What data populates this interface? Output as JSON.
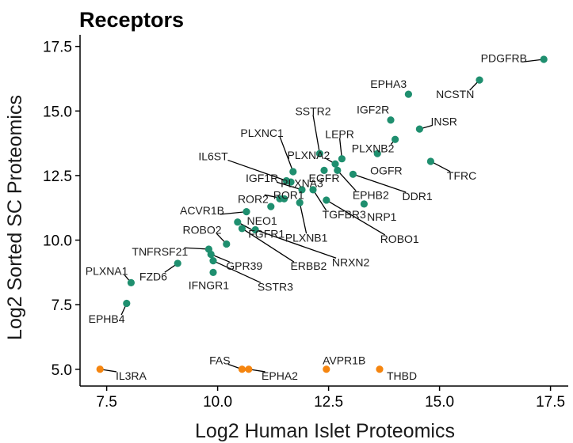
{
  "chart_data": {
    "type": "scatter",
    "title": "Receptors",
    "xlabel": "Log2 Human Islet Proteomics",
    "ylabel": "Log2 Sorted SC Proteomics",
    "xlim": [
      6.9,
      17.9
    ],
    "ylim": [
      4.35,
      17.95
    ],
    "xticks": [
      7.5,
      10.0,
      12.5,
      15.0,
      17.5
    ],
    "yticks": [
      5.0,
      7.5,
      10.0,
      12.5,
      15.0,
      17.5
    ],
    "tick_labels_x": [
      "7.5",
      "10.0",
      "12.5",
      "15.0",
      "17.5"
    ],
    "tick_labels_y": [
      "5.0",
      "7.5",
      "10.0",
      "12.5",
      "15.0",
      "17.5"
    ],
    "grid": false,
    "legend": "none",
    "colors": {
      "detected": "#1f8f6f",
      "imputed": "#f5850f"
    },
    "points": [
      {
        "x": 17.35,
        "y": 17.0,
        "label": "PDGFRB",
        "group": "detected",
        "lx": 16.45,
        "ly": 17.05
      },
      {
        "x": 15.9,
        "y": 16.2,
        "label": "NCSTN",
        "group": "detected",
        "lx": 15.35,
        "ly": 15.65
      },
      {
        "x": 14.3,
        "y": 15.65,
        "label": "EPHA3",
        "group": "detected",
        "lx": 13.85,
        "ly": 16.05
      },
      {
        "x": 13.9,
        "y": 14.65,
        "label": "IGF2R",
        "group": "detected",
        "lx": 13.5,
        "ly": 15.05
      },
      {
        "x": 14.55,
        "y": 14.3,
        "label": "INSR",
        "group": "detected",
        "lx": 15.1,
        "ly": 14.6
      },
      {
        "x": 14.0,
        "y": 13.9,
        "label": "PLXNB2",
        "group": "detected",
        "lx": 13.5,
        "ly": 13.55
      },
      {
        "x": 13.6,
        "y": 13.35,
        "label": "OGFR",
        "group": "detected",
        "lx": 13.8,
        "ly": 12.7
      },
      {
        "x": 14.8,
        "y": 13.05,
        "label": "TFRC",
        "group": "detected",
        "lx": 15.5,
        "ly": 12.5
      },
      {
        "x": 12.8,
        "y": 13.15,
        "label": "LEPR",
        "group": "detected",
        "lx": 12.75,
        "ly": 14.1
      },
      {
        "x": 12.3,
        "y": 13.35,
        "label": "SSTR2",
        "group": "detected",
        "lx": 12.15,
        "ly": 15.0
      },
      {
        "x": 11.7,
        "y": 12.65,
        "label": "PLXNC1",
        "group": "detected",
        "lx": 11.0,
        "ly": 14.15
      },
      {
        "x": 12.65,
        "y": 12.95,
        "label": "PLXNA2",
        "group": "detected",
        "lx": 12.05,
        "ly": 13.3
      },
      {
        "x": 12.4,
        "y": 12.7,
        "label": "EGFR",
        "group": "detected",
        "lx": 12.4,
        "ly": 12.4
      },
      {
        "x": 12.7,
        "y": 12.7,
        "label": "EPHB2",
        "group": "detected",
        "lx": 13.45,
        "ly": 11.75
      },
      {
        "x": 13.05,
        "y": 12.55,
        "label": "DDR1",
        "group": "detected",
        "lx": 14.5,
        "ly": 11.7
      },
      {
        "x": 11.55,
        "y": 12.3,
        "label": "IL6ST",
        "group": "detected",
        "lx": 9.9,
        "ly": 13.25
      },
      {
        "x": 11.65,
        "y": 12.25,
        "label": "PLXNA3",
        "group": "detected",
        "lx": 11.9,
        "ly": 12.2
      },
      {
        "x": 11.9,
        "y": 11.95,
        "label": "IGF1R",
        "group": "detected",
        "lx": 11.0,
        "ly": 12.4
      },
      {
        "x": 11.4,
        "y": 11.6,
        "label": "ROR1",
        "group": "detected",
        "lx": 11.6,
        "ly": 11.75
      },
      {
        "x": 11.5,
        "y": 11.6,
        "label": "ROR2",
        "group": "detected",
        "lx": 10.8,
        "ly": 11.6
      },
      {
        "x": 12.15,
        "y": 11.95,
        "label": "TGFBR3",
        "group": "detected",
        "lx": 12.85,
        "ly": 11.0
      },
      {
        "x": 12.45,
        "y": 11.55,
        "label": "ROBO1",
        "group": "detected",
        "lx": 14.1,
        "ly": 10.05
      },
      {
        "x": 13.3,
        "y": 11.4,
        "label": "NRP1",
        "group": "detected",
        "lx": 13.7,
        "ly": 10.9
      },
      {
        "x": 11.2,
        "y": 11.3,
        "label": "NEO1",
        "group": "detected",
        "lx": 11.0,
        "ly": 10.75
      },
      {
        "x": 11.85,
        "y": 11.45,
        "label": "PLXNB1",
        "group": "detected",
        "lx": 12.0,
        "ly": 10.1
      },
      {
        "x": 10.65,
        "y": 11.1,
        "label": "ACVR1B",
        "group": "detected",
        "lx": 9.65,
        "ly": 11.15
      },
      {
        "x": 10.45,
        "y": 10.7,
        "label": "FGFR1",
        "group": "detected",
        "lx": 11.1,
        "ly": 10.25
      },
      {
        "x": 10.55,
        "y": 10.45,
        "label": "ERBB2",
        "group": "detected",
        "lx": 12.05,
        "ly": 9.0
      },
      {
        "x": 10.85,
        "y": 10.4,
        "label": "NRXN2",
        "group": "detected",
        "lx": 13.0,
        "ly": 9.15
      },
      {
        "x": 10.2,
        "y": 9.85,
        "label": "ROBO2",
        "group": "detected",
        "lx": 9.65,
        "ly": 10.4
      },
      {
        "x": 9.8,
        "y": 9.65,
        "label": "TNFRSF21",
        "group": "detected",
        "lx": 8.7,
        "ly": 9.55
      },
      {
        "x": 9.85,
        "y": 9.45,
        "label": "GPR39",
        "group": "detected",
        "lx": 10.6,
        "ly": 9.0
      },
      {
        "x": 9.9,
        "y": 9.2,
        "label": "SSTR3",
        "group": "detected",
        "lx": 11.3,
        "ly": 8.2
      },
      {
        "x": 9.1,
        "y": 9.1,
        "label": "FZD6",
        "group": "detected",
        "lx": 8.55,
        "ly": 8.6
      },
      {
        "x": 9.9,
        "y": 8.75,
        "label": "IFNGR1",
        "group": "detected",
        "lx": 9.8,
        "ly": 8.25
      },
      {
        "x": 8.05,
        "y": 8.35,
        "label": "PLXNA1",
        "group": "detected",
        "lx": 7.5,
        "ly": 8.8
      },
      {
        "x": 7.95,
        "y": 7.55,
        "label": "EPHB4",
        "group": "detected",
        "lx": 7.5,
        "ly": 6.95
      },
      {
        "x": 7.35,
        "y": 5.0,
        "label": "IL3RA",
        "group": "imputed",
        "lx": 8.05,
        "ly": 4.75
      },
      {
        "x": 10.55,
        "y": 5.0,
        "label": "FAS",
        "group": "imputed",
        "lx": 10.05,
        "ly": 5.35
      },
      {
        "x": 10.7,
        "y": 5.0,
        "label": "EPHA2",
        "group": "imputed",
        "lx": 11.4,
        "ly": 4.75
      },
      {
        "x": 12.45,
        "y": 5.0,
        "label": "AVPR1B",
        "group": "imputed",
        "lx": 12.85,
        "ly": 5.35
      },
      {
        "x": 13.65,
        "y": 5.0,
        "label": "THBD",
        "group": "imputed",
        "lx": 14.15,
        "ly": 4.75
      }
    ]
  }
}
